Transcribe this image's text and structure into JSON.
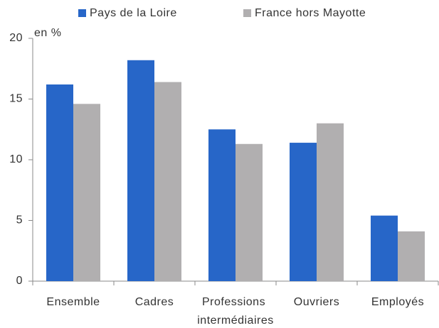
{
  "chart_data": {
    "type": "bar",
    "y_label": "en %",
    "categories": [
      "Ensemble",
      "Cadres",
      "Professions intermédiaires",
      "Ouvriers",
      "Employés"
    ],
    "series": [
      {
        "name": "Pays de la Loire",
        "color": "#2766c8",
        "values": [
          16.2,
          18.2,
          12.5,
          11.4,
          5.4
        ]
      },
      {
        "name": "France hors Mayotte",
        "color": "#b1afb0",
        "values": [
          14.6,
          16.4,
          11.3,
          13.0,
          4.1
        ]
      }
    ],
    "ylim": [
      0,
      20
    ],
    "yticks": [
      0,
      5,
      10,
      15,
      20
    ],
    "grid": false,
    "legend": "top"
  }
}
